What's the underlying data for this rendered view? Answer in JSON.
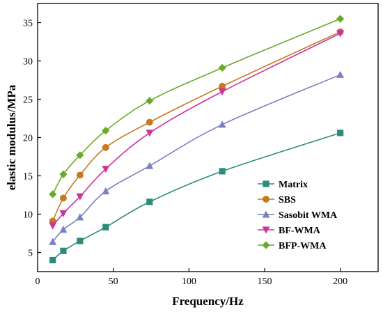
{
  "chart_data": {
    "type": "line",
    "xlabel": "Frequency/Hz",
    "ylabel": "elastic modulus/MPa",
    "xlim": [
      0,
      225
    ],
    "ylim": [
      2.5,
      37.5
    ],
    "xticks": [
      0,
      50,
      100,
      150,
      200
    ],
    "yticks": [
      5,
      10,
      15,
      20,
      25,
      30,
      35
    ],
    "x": [
      10,
      17,
      28,
      45,
      74,
      122,
      200
    ],
    "grid": false,
    "legend_position": "bottom-right",
    "series": [
      {
        "name": "Matrix",
        "color": "#2e8b7a",
        "marker": "square",
        "values": [
          4.0,
          5.2,
          6.5,
          8.3,
          11.6,
          15.6,
          20.6
        ]
      },
      {
        "name": "SBS",
        "color": "#c8781e",
        "marker": "circle",
        "values": [
          9.1,
          12.1,
          15.1,
          18.7,
          22.0,
          26.7,
          33.8
        ]
      },
      {
        "name": "Sasobit WMA",
        "color": "#7b7fc4",
        "marker": "triangle-up",
        "values": [
          6.4,
          8.0,
          9.6,
          13.0,
          16.3,
          21.7,
          28.2
        ]
      },
      {
        "name": "BF-WMA",
        "color": "#cc3399",
        "marker": "triangle-down",
        "values": [
          8.5,
          10.1,
          12.3,
          15.9,
          20.6,
          26.0,
          33.6
        ]
      },
      {
        "name": "BFP-WMA",
        "color": "#6aaa2a",
        "marker": "diamond",
        "values": [
          12.6,
          15.2,
          17.7,
          20.9,
          24.8,
          29.1,
          35.5
        ]
      }
    ]
  }
}
